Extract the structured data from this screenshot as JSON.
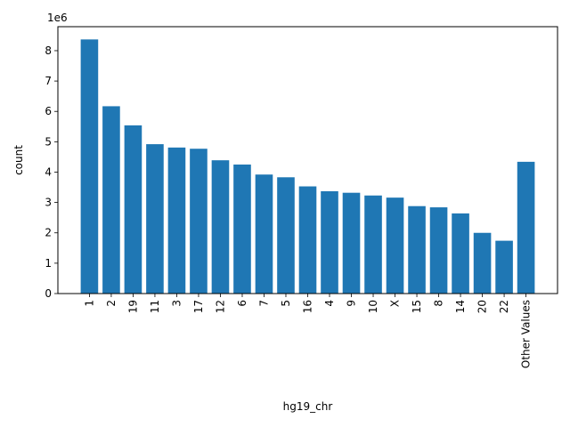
{
  "chart_data": {
    "type": "bar",
    "title": "",
    "xlabel": "hg19_chr",
    "ylabel": "count",
    "y_multiplier_label": "1e6",
    "categories": [
      "1",
      "2",
      "19",
      "11",
      "3",
      "17",
      "12",
      "6",
      "7",
      "5",
      "16",
      "4",
      "9",
      "10",
      "X",
      "15",
      "8",
      "14",
      "20",
      "22",
      "Other Values"
    ],
    "values": [
      8370000,
      6170000,
      5540000,
      4920000,
      4810000,
      4770000,
      4390000,
      4250000,
      3920000,
      3830000,
      3530000,
      3370000,
      3320000,
      3230000,
      3160000,
      2880000,
      2840000,
      2640000,
      2000000,
      1740000,
      4340000
    ],
    "ylim": [
      0,
      8790000
    ],
    "yticks": [
      0,
      1,
      2,
      3,
      4,
      5,
      6,
      7,
      8
    ],
    "bar_color": "#1f77b4",
    "grid": false,
    "legend": "none"
  }
}
